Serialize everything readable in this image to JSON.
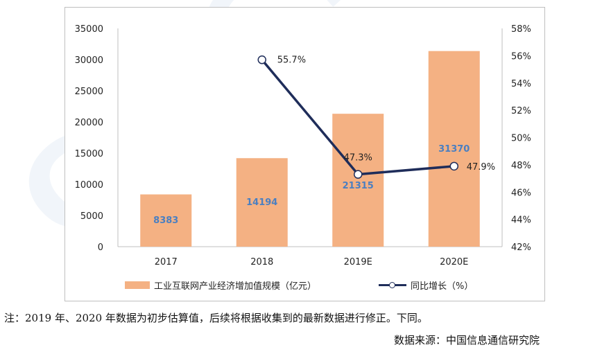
{
  "chart_data": {
    "type": "bar",
    "categories": [
      "2017",
      "2018",
      "2019E",
      "2020E"
    ],
    "series": [
      {
        "name": "工业互联网产业经济增加值规模（亿元）",
        "type": "bar",
        "axis": "left",
        "values": [
          8383,
          14194,
          21315,
          31370
        ],
        "labels": [
          "8383",
          "14194",
          "21315",
          "31370"
        ],
        "color": "#f4b183"
      },
      {
        "name": "同比增长（%）",
        "type": "line",
        "axis": "right",
        "values": [
          null,
          55.7,
          47.3,
          47.9
        ],
        "labels": [
          "",
          "55.7%",
          "47.3%",
          "47.9%"
        ],
        "color": "#1f2d5a"
      }
    ],
    "y_left": {
      "ylim": [
        0,
        35000
      ],
      "ticks": [
        0,
        5000,
        10000,
        15000,
        20000,
        25000,
        30000,
        35000
      ],
      "tick_labels": [
        "0",
        "5000",
        "10000",
        "15000",
        "20000",
        "25000",
        "30000",
        "35000"
      ]
    },
    "y_right": {
      "ylim": [
        42,
        58
      ],
      "ticks": [
        42,
        44,
        46,
        48,
        50,
        52,
        54,
        56,
        58
      ],
      "tick_labels": [
        "42%",
        "44%",
        "46%",
        "48%",
        "50%",
        "52%",
        "54%",
        "56%",
        "58%"
      ]
    },
    "bar_label_color": "#4a7fc1",
    "legend_position": "bottom",
    "grid": false
  },
  "note": "注：2019 年、2020 年数据为初步估算值，后续将根据收集到的最新数据进行修正。下同。",
  "source": "数据来源：中国信息通信研究院",
  "watermark": "CAICT"
}
